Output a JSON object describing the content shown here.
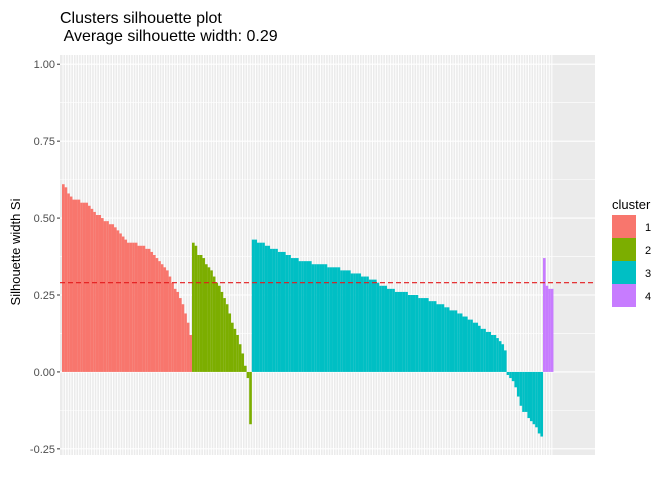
{
  "chart_data": {
    "type": "bar",
    "title": "Clusters silhouette plot",
    "subtitle": " Average silhouette width: 0.29",
    "xlabel": "",
    "ylabel": "Silhouette width Si",
    "ylim": [
      -0.27,
      1.03
    ],
    "yticks": [
      "1.00",
      "0.75",
      "0.50",
      "0.25",
      "0.00",
      "-0.25"
    ],
    "ytick_values": [
      1.0,
      0.75,
      0.5,
      0.25,
      0.0,
      -0.25
    ],
    "average_line": 0.29,
    "average_line_color": "#e41a1c",
    "legend": {
      "title": "cluster",
      "placement": "right",
      "entries": [
        {
          "label": "1",
          "color": "#F8766D"
        },
        {
          "label": "2",
          "color": "#7CAE00"
        },
        {
          "label": "3",
          "color": "#00BFC4"
        },
        {
          "label": "4",
          "color": "#C77CFF"
        }
      ]
    },
    "grid": true,
    "panel_background": "#EBEBEB",
    "series": [
      {
        "name": "1",
        "color": "#F8766D",
        "values": [
          0.61,
          0.6,
          0.58,
          0.57,
          0.56,
          0.56,
          0.56,
          0.55,
          0.55,
          0.55,
          0.54,
          0.53,
          0.52,
          0.51,
          0.51,
          0.5,
          0.49,
          0.49,
          0.48,
          0.48,
          0.47,
          0.46,
          0.45,
          0.44,
          0.43,
          0.42,
          0.42,
          0.42,
          0.42,
          0.41,
          0.41,
          0.41,
          0.4,
          0.4,
          0.39,
          0.38,
          0.37,
          0.36,
          0.35,
          0.34,
          0.33,
          0.31,
          0.29,
          0.27,
          0.26,
          0.24,
          0.22,
          0.19,
          0.16,
          0.12
        ]
      },
      {
        "name": "2",
        "color": "#7CAE00",
        "values": [
          0.42,
          0.41,
          0.38,
          0.38,
          0.37,
          0.35,
          0.34,
          0.33,
          0.31,
          0.29,
          0.28,
          0.26,
          0.24,
          0.22,
          0.19,
          0.16,
          0.14,
          0.12,
          0.09,
          0.06,
          0.02,
          -0.02,
          -0.17
        ]
      },
      {
        "name": "3",
        "color": "#00BFC4",
        "values": [
          0.43,
          0.43,
          0.42,
          0.42,
          0.42,
          0.41,
          0.41,
          0.4,
          0.4,
          0.4,
          0.39,
          0.39,
          0.39,
          0.38,
          0.38,
          0.37,
          0.37,
          0.37,
          0.36,
          0.36,
          0.36,
          0.36,
          0.36,
          0.35,
          0.35,
          0.35,
          0.35,
          0.35,
          0.35,
          0.34,
          0.34,
          0.34,
          0.34,
          0.34,
          0.33,
          0.33,
          0.33,
          0.33,
          0.32,
          0.32,
          0.32,
          0.32,
          0.31,
          0.31,
          0.31,
          0.3,
          0.3,
          0.3,
          0.29,
          0.28,
          0.28,
          0.28,
          0.27,
          0.27,
          0.27,
          0.26,
          0.26,
          0.26,
          0.26,
          0.26,
          0.25,
          0.25,
          0.25,
          0.25,
          0.24,
          0.24,
          0.24,
          0.24,
          0.23,
          0.23,
          0.23,
          0.22,
          0.22,
          0.22,
          0.21,
          0.21,
          0.2,
          0.2,
          0.2,
          0.19,
          0.19,
          0.18,
          0.18,
          0.17,
          0.17,
          0.16,
          0.16,
          0.15,
          0.14,
          0.14,
          0.13,
          0.13,
          0.12,
          0.12,
          0.11,
          0.1,
          0.09,
          0.07,
          -0.01,
          -0.02,
          -0.03,
          -0.05,
          -0.08,
          -0.11,
          -0.13,
          -0.13,
          -0.15,
          -0.16,
          -0.17,
          -0.18,
          -0.2,
          -0.21
        ]
      },
      {
        "name": "4",
        "color": "#C77CFF",
        "values": [
          0.37,
          0.28,
          0.27,
          0.27
        ]
      }
    ]
  }
}
